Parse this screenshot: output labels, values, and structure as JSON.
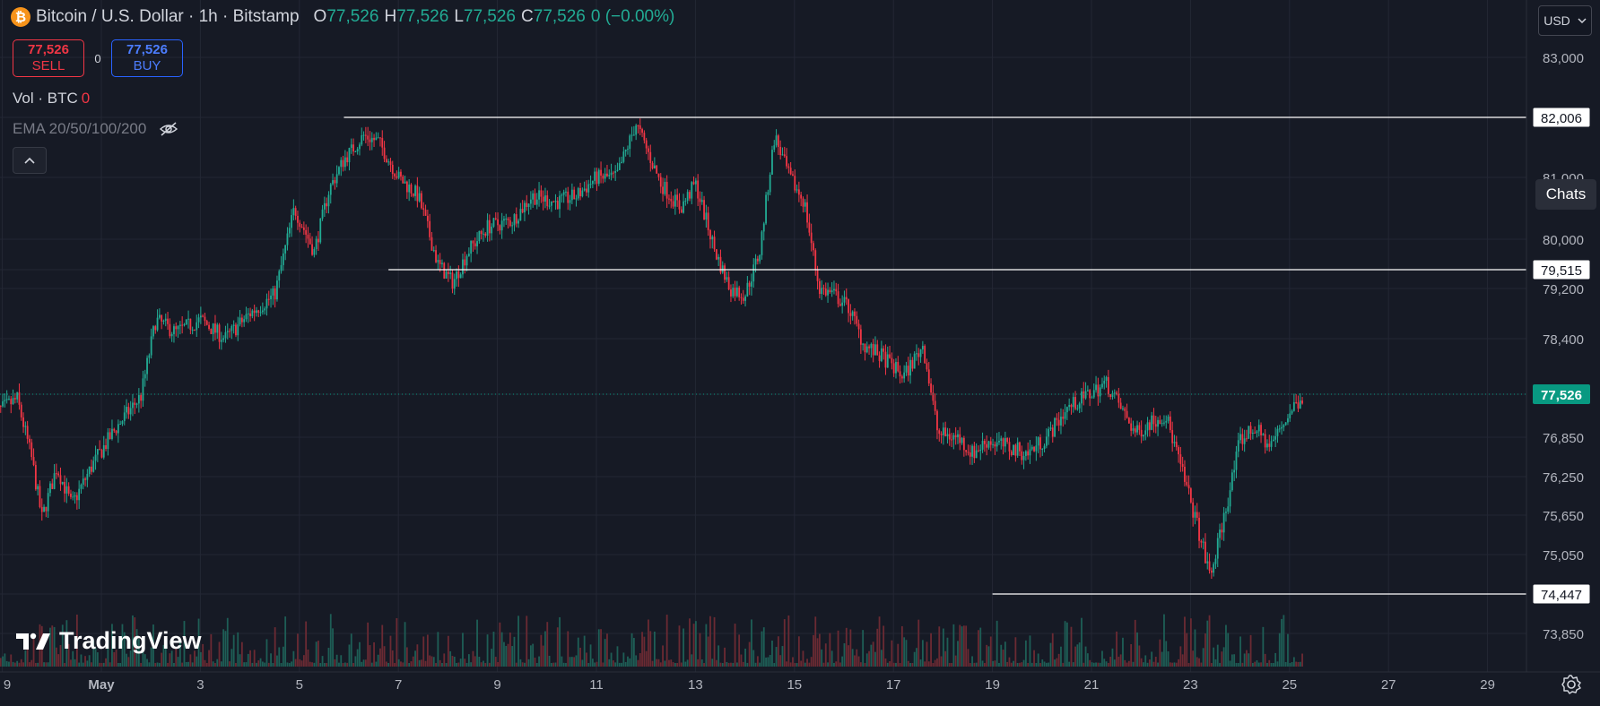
{
  "legend": {
    "coin_symbol": "₿",
    "title": "Bitcoin / U.S. Dollar · 1h · Bitstamp",
    "o_label": "O",
    "o_value": "77,526",
    "h_label": "H",
    "h_value": "77,526",
    "l_label": "L",
    "l_value": "77,526",
    "c_label": "C",
    "c_value": "77,526",
    "change": "0 (−0.00%)"
  },
  "trade": {
    "sell_price": "77,526",
    "sell_label": "SELL",
    "spread": "0",
    "buy_price": "77,526",
    "buy_label": "BUY"
  },
  "indicators": {
    "vol_label": "Vol · BTC",
    "vol_value": "0",
    "ema_label": "EMA 20/50/100/200"
  },
  "currency": "USD",
  "chats_label": "Chats",
  "brand": "TradingView",
  "colors": {
    "background": "#161a25",
    "up": "#22ab94",
    "down": "#f23645",
    "grid": "#232734",
    "axis_text": "#b2b5be",
    "current_price": "#089981"
  },
  "chart_data": {
    "type": "candlestick",
    "interval": "1h",
    "y_ticks": [
      73850,
      74447,
      75050,
      75650,
      76250,
      76850,
      77526,
      78400,
      79200,
      79515,
      80000,
      81000,
      82006,
      83000
    ],
    "x_ticks": [
      {
        "label": "9",
        "day": -1
      },
      {
        "label": "May",
        "day": 1
      },
      {
        "label": "3",
        "day": 3
      },
      {
        "label": "5",
        "day": 5
      },
      {
        "label": "7",
        "day": 7
      },
      {
        "label": "9",
        "day": 9
      },
      {
        "label": "11",
        "day": 11
      },
      {
        "label": "13",
        "day": 13
      },
      {
        "label": "15",
        "day": 15
      },
      {
        "label": "17",
        "day": 17
      },
      {
        "label": "19",
        "day": 19
      },
      {
        "label": "21",
        "day": 21
      },
      {
        "label": "23",
        "day": 23
      },
      {
        "label": "25",
        "day": 25
      },
      {
        "label": "27",
        "day": 27
      },
      {
        "label": "29",
        "day": 29
      }
    ],
    "horizontal_lines": [
      {
        "price": 82006,
        "label": "82,006",
        "from_day": 5.9
      },
      {
        "price": 79515,
        "label": "79,515",
        "from_day": 6.8
      },
      {
        "price": 74447,
        "label": "74,447",
        "from_day": 19.0
      }
    ],
    "current_price": {
      "price": 77526,
      "label": "77,526"
    },
    "price_path": [
      [
        -1.2,
        77200
      ],
      [
        -0.7,
        77450
      ],
      [
        -0.4,
        76500
      ],
      [
        -0.2,
        75600
      ],
      [
        0.1,
        76400
      ],
      [
        0.4,
        75800
      ],
      [
        0.8,
        76400
      ],
      [
        1.3,
        77000
      ],
      [
        1.8,
        77500
      ],
      [
        2.1,
        78700
      ],
      [
        2.5,
        78500
      ],
      [
        3.0,
        78700
      ],
      [
        3.5,
        78400
      ],
      [
        4.0,
        78800
      ],
      [
        4.5,
        79100
      ],
      [
        4.9,
        80500
      ],
      [
        5.3,
        79800
      ],
      [
        5.6,
        80800
      ],
      [
        5.9,
        81300
      ],
      [
        6.3,
        81700
      ],
      [
        6.6,
        81600
      ],
      [
        7.0,
        81000
      ],
      [
        7.4,
        80700
      ],
      [
        7.8,
        79600
      ],
      [
        8.1,
        79300
      ],
      [
        8.4,
        79800
      ],
      [
        8.8,
        80200
      ],
      [
        9.3,
        80300
      ],
      [
        9.7,
        80700
      ],
      [
        10.2,
        80600
      ],
      [
        10.6,
        80700
      ],
      [
        11.0,
        81000
      ],
      [
        11.4,
        81000
      ],
      [
        11.8,
        81900
      ],
      [
        12.3,
        80900
      ],
      [
        12.7,
        80500
      ],
      [
        13.0,
        80900
      ],
      [
        13.4,
        79800
      ],
      [
        13.7,
        79200
      ],
      [
        14.0,
        79100
      ],
      [
        14.3,
        79800
      ],
      [
        14.6,
        81700
      ],
      [
        14.9,
        81000
      ],
      [
        15.2,
        80600
      ],
      [
        15.5,
        79200
      ],
      [
        15.8,
        79100
      ],
      [
        16.1,
        78900
      ],
      [
        16.4,
        78300
      ],
      [
        16.8,
        78100
      ],
      [
        17.2,
        77800
      ],
      [
        17.6,
        78300
      ],
      [
        17.9,
        76900
      ],
      [
        18.3,
        76850
      ],
      [
        18.6,
        76600
      ],
      [
        18.9,
        76800
      ],
      [
        19.3,
        76700
      ],
      [
        19.7,
        76600
      ],
      [
        20.1,
        76850
      ],
      [
        20.5,
        77300
      ],
      [
        20.9,
        77500
      ],
      [
        21.3,
        77700
      ],
      [
        21.6,
        77300
      ],
      [
        21.9,
        76900
      ],
      [
        22.2,
        77100
      ],
      [
        22.5,
        77200
      ],
      [
        22.8,
        76400
      ],
      [
        23.1,
        75600
      ],
      [
        23.4,
        74700
      ],
      [
        23.7,
        75700
      ],
      [
        24.0,
        76800
      ],
      [
        24.3,
        77000
      ],
      [
        24.6,
        76700
      ],
      [
        24.9,
        77100
      ],
      [
        25.1,
        77350
      ],
      [
        25.3,
        77526
      ]
    ]
  }
}
